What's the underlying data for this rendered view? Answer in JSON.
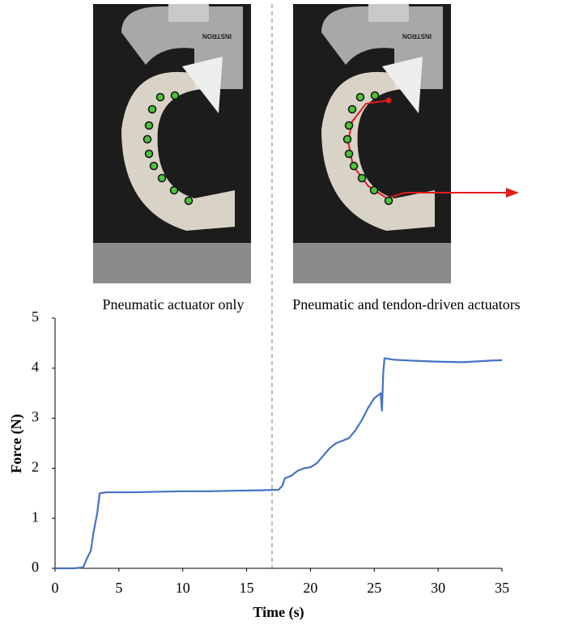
{
  "chart_data": {
    "type": "line",
    "annotations": [
      "Pneumatic actuator only",
      "Pneumatic and tendon-driven actuators"
    ],
    "photo_label": "INSTRON",
    "x_label": "Time (s)",
    "y_label": "Force (N)",
    "x": [
      0,
      1.5,
      2.2,
      2.5,
      2.8,
      3.0,
      3.3,
      3.5,
      4,
      6,
      8,
      10,
      12,
      14,
      16,
      17.5,
      17.8,
      18,
      18.5,
      19,
      19.5,
      20,
      20.5,
      21,
      21.5,
      22,
      22.5,
      23,
      23.5,
      24,
      24.5,
      25,
      25.5,
      25.6,
      25.7,
      25.8,
      26.5,
      28,
      30,
      32,
      34,
      35
    ],
    "values": [
      0,
      0,
      0.02,
      0.2,
      0.35,
      0.7,
      1.1,
      1.5,
      1.52,
      1.52,
      1.53,
      1.54,
      1.54,
      1.55,
      1.56,
      1.57,
      1.65,
      1.8,
      1.85,
      1.95,
      2.0,
      2.02,
      2.1,
      2.25,
      2.4,
      2.5,
      2.55,
      2.6,
      2.75,
      2.95,
      3.2,
      3.4,
      3.5,
      3.15,
      3.9,
      4.2,
      4.17,
      4.15,
      4.13,
      4.12,
      4.15,
      4.16
    ],
    "color": "#4472c4",
    "xlim": [
      0,
      35
    ],
    "xticks": [
      0,
      5,
      10,
      15,
      20,
      25,
      30,
      35
    ],
    "ylim": [
      0,
      5
    ],
    "yticks": [
      0,
      1,
      2,
      3,
      4,
      5
    ]
  }
}
